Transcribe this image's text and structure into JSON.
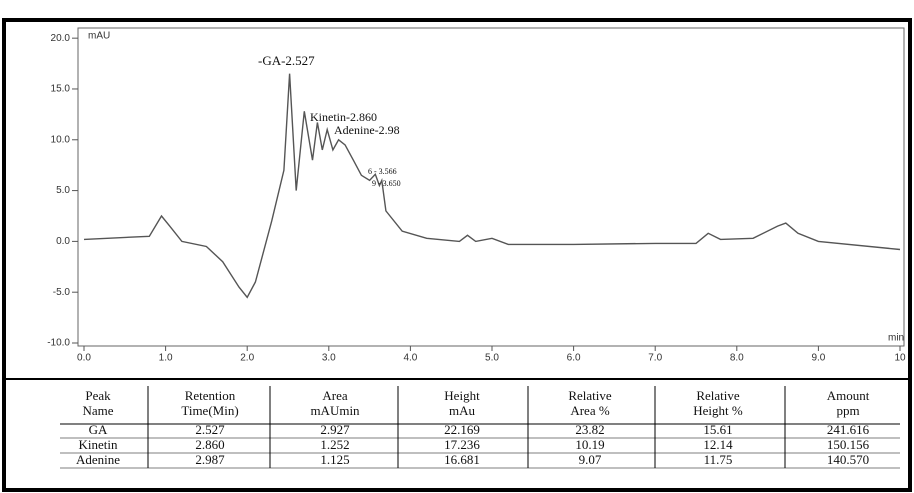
{
  "chart_data": {
    "type": "line",
    "y_label": "mAU",
    "x_label": "min",
    "x": [
      0.0,
      0.8,
      0.95,
      1.05,
      1.2,
      1.5,
      1.7,
      1.9,
      2.0,
      2.1,
      2.3,
      2.45,
      2.52,
      2.6,
      2.7,
      2.8,
      2.86,
      2.92,
      2.98,
      3.05,
      3.12,
      3.2,
      3.3,
      3.4,
      3.5,
      3.57,
      3.62,
      3.65,
      3.7,
      3.9,
      4.2,
      4.6,
      4.7,
      4.8,
      5.0,
      5.2,
      6.0,
      7.0,
      7.5,
      7.65,
      7.8,
      8.2,
      8.5,
      8.6,
      8.75,
      9.0,
      10.0
    ],
    "values": [
      0.2,
      0.5,
      2.5,
      1.5,
      0,
      -0.5,
      -2,
      -4.5,
      -5.5,
      -4,
      2,
      7,
      16.5,
      5,
      12.8,
      8,
      11.7,
      9,
      11,
      9,
      10,
      9.5,
      8,
      6.5,
      6,
      6.6,
      5.5,
      6,
      3,
      1,
      0.3,
      0,
      0.6,
      0,
      0.3,
      -0.3,
      -0.3,
      -0.2,
      -0.2,
      0.8,
      0.2,
      0.3,
      1.5,
      1.8,
      0.8,
      0,
      -0.8
    ],
    "color": "#555555",
    "xlim": [
      0,
      10
    ],
    "ylim": [
      -10,
      21
    ],
    "xticks": [
      {
        "value": 0,
        "label": "0.0"
      },
      {
        "value": 1,
        "label": "1.0"
      },
      {
        "value": 2,
        "label": "2.0"
      },
      {
        "value": 3,
        "label": "3.0"
      },
      {
        "value": 4,
        "label": "4.0"
      },
      {
        "value": 5,
        "label": "5.0"
      },
      {
        "value": 6,
        "label": "6.0"
      },
      {
        "value": 7,
        "label": "7.0"
      },
      {
        "value": 8,
        "label": "8.0"
      },
      {
        "value": 9,
        "label": "9.0"
      },
      10
    ],
    "yticks": [
      {
        "value": 20,
        "label": "20.0"
      },
      {
        "value": 15,
        "label": "15.0"
      },
      {
        "value": 10,
        "label": "10.0"
      },
      {
        "value": 5,
        "label": "5.0"
      },
      {
        "value": 0,
        "label": "0.0"
      },
      {
        "value": -5,
        "label": "-5.0"
      },
      {
        "value": -10,
        "label": "-10.0"
      }
    ],
    "annotations": [
      "-GA-2.527",
      "Kinetin-2.860",
      "Adenine-2.98",
      "6 - 3.566",
      "9 - 3.650"
    ]
  },
  "table": {
    "columns": [
      [
        "Peak",
        "Name"
      ],
      [
        "Retention",
        "Time(Min)"
      ],
      [
        "Area",
        "mAUmin"
      ],
      [
        "Height",
        "mAu"
      ],
      [
        "Relative",
        "Area %"
      ],
      [
        "Relative",
        "Height %"
      ],
      [
        "Amount",
        "ppm"
      ]
    ],
    "rows": [
      [
        "GA",
        "2.527",
        "2.927",
        "22.169",
        "23.82",
        "15.61",
        "241.616"
      ],
      [
        "Kinetin",
        "2.860",
        "1.252",
        "17.236",
        "10.19",
        "12.14",
        "150.156"
      ],
      [
        "Adenine",
        "2.987",
        "1.125",
        "16.681",
        "9.07",
        "11.75",
        "140.570"
      ]
    ]
  }
}
